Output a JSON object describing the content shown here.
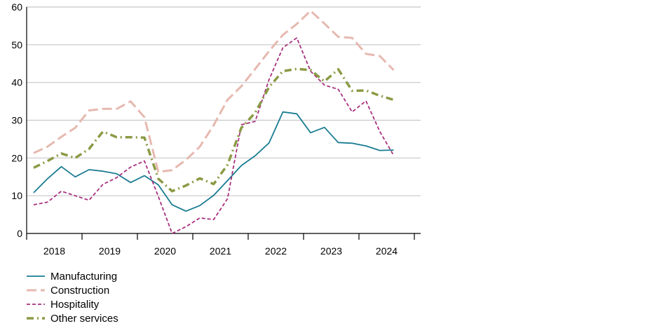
{
  "chart_data": {
    "type": "line",
    "title": "",
    "xlabel": "",
    "ylabel": "",
    "ylim": [
      0,
      60
    ],
    "yticks": [
      0,
      10,
      20,
      30,
      40,
      50,
      60
    ],
    "year_labels": [
      "2018",
      "2019",
      "2020",
      "2021",
      "2022",
      "2023",
      "2024"
    ],
    "x": [
      "2017 Q4",
      "2018 Q1",
      "2018 Q2",
      "2018 Q3",
      "2018 Q4",
      "2019 Q1",
      "2019 Q2",
      "2019 Q3",
      "2019 Q4",
      "2020 Q1",
      "2020 Q2",
      "2020 Q3",
      "2020 Q4",
      "2021 Q1",
      "2021 Q2",
      "2021 Q3",
      "2021 Q4",
      "2022 Q1",
      "2022 Q2",
      "2022 Q3",
      "2022 Q4",
      "2023 Q1",
      "2023 Q2",
      "2023 Q3",
      "2023 Q4",
      "2024 Q1",
      "2024 Q2"
    ],
    "grid": true,
    "legend_position": "bottom-left",
    "series": [
      {
        "name": "Manufacturing",
        "color": "#1a7c92",
        "dash": "solid",
        "values": [
          10.8,
          14.5,
          17.7,
          15.0,
          16.9,
          16.5,
          15.8,
          13.5,
          15.3,
          12.9,
          7.6,
          5.9,
          7.4,
          10.1,
          14.0,
          18.0,
          20.6,
          24.0,
          32.2,
          31.7,
          26.7,
          28.1,
          24.1,
          23.9,
          23.2,
          22.0,
          22.1
        ]
      },
      {
        "name": "Construction",
        "color": "#e6b9b0",
        "dash": "long-dash",
        "values": [
          21.3,
          23.0,
          25.6,
          28.0,
          32.6,
          33.0,
          33.0,
          35.0,
          30.8,
          16.3,
          16.8,
          19.5,
          23.0,
          28.7,
          35.4,
          39.0,
          43.6,
          48.3,
          52.6,
          55.5,
          59.0,
          55.6,
          52.1,
          51.8,
          47.6,
          47.0,
          43.3
        ]
      },
      {
        "name": "Hospitality",
        "color": "#a8307e",
        "dash": "short-dash",
        "values": [
          7.6,
          8.3,
          11.2,
          10.0,
          8.8,
          13.0,
          14.8,
          17.6,
          19.2,
          9.8,
          0.0,
          1.8,
          4.1,
          3.7,
          9.2,
          28.8,
          29.7,
          40.8,
          49.2,
          51.8,
          43.0,
          39.3,
          38.2,
          32.2,
          35.1,
          27.0,
          20.7
        ]
      },
      {
        "name": "Other services",
        "color": "#8a9b45",
        "dash": "dash-dot",
        "values": [
          17.4,
          19.2,
          21.2,
          20.0,
          22.4,
          27.0,
          25.5,
          25.5,
          25.4,
          14.5,
          11.2,
          12.7,
          14.6,
          13.1,
          18.2,
          28.0,
          32.0,
          38.8,
          43.0,
          43.6,
          43.3,
          40.3,
          43.5,
          37.8,
          37.9,
          36.5,
          35.4
        ]
      }
    ]
  }
}
